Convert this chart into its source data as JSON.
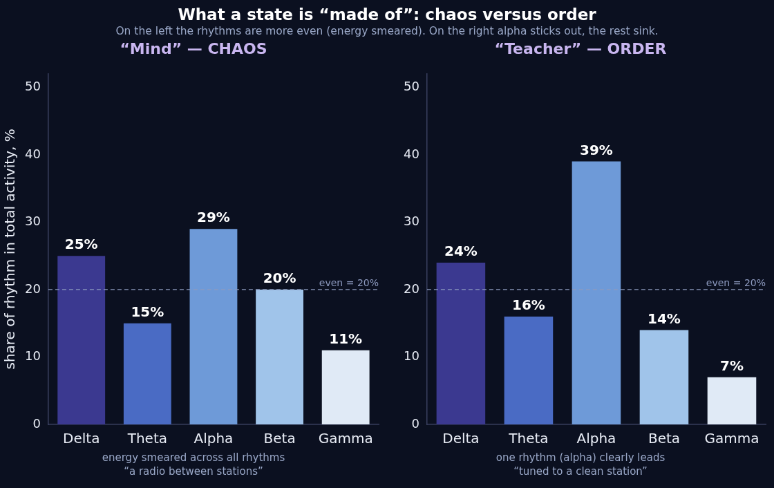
{
  "chart_data": [
    {
      "type": "bar",
      "title": "“Mind” — CHAOS",
      "ylabel": "share of rhythm in total activity, %",
      "categories": [
        "Delta",
        "Theta",
        "Alpha",
        "Beta",
        "Gamma"
      ],
      "values": [
        25,
        15,
        29,
        20,
        11
      ],
      "colors": [
        "#3b3990",
        "#4a6bc4",
        "#6e9ad8",
        "#a0c4ea",
        "#e0eaf6"
      ],
      "value_labels": [
        "25%",
        "15%",
        "29%",
        "20%",
        "11%"
      ],
      "ylim": [
        0,
        52
      ],
      "yticks": [
        0,
        10,
        20,
        30,
        40,
        50
      ],
      "grid": false,
      "legend": false,
      "ref_lines": [
        {
          "axis": "y",
          "value": 20,
          "label": "even = 20%",
          "color": "#8d9abf",
          "line_style": "dashed"
        }
      ],
      "annotations": [
        "What a state is “made of”: chaos versus order",
        "On the left the rhythms are more even (energy smeared). On the right alpha sticks out, the rest sink.",
        "energy smeared across all rhythms\n“a radio between stations”"
      ]
    },
    {
      "type": "bar",
      "title": "“Teacher” — ORDER",
      "categories": [
        "Delta",
        "Theta",
        "Alpha",
        "Beta",
        "Gamma"
      ],
      "values": [
        24,
        16,
        39,
        14,
        7
      ],
      "colors": [
        "#3b3990",
        "#4a6bc4",
        "#6e9ad8",
        "#a0c4ea",
        "#e0eaf6"
      ],
      "value_labels": [
        "24%",
        "16%",
        "39%",
        "14%",
        "7%"
      ],
      "ylim": [
        0,
        52
      ],
      "yticks": [
        0,
        10,
        20,
        30,
        40,
        50
      ],
      "grid": false,
      "legend": false,
      "ref_lines": [
        {
          "axis": "y",
          "value": 20,
          "label": "even = 20%",
          "color": "#8d9abf",
          "line_style": "dashed"
        }
      ],
      "annotations": [
        "one rhythm (alpha) clearly leads\n“tuned to a clean station”"
      ]
    }
  ]
}
